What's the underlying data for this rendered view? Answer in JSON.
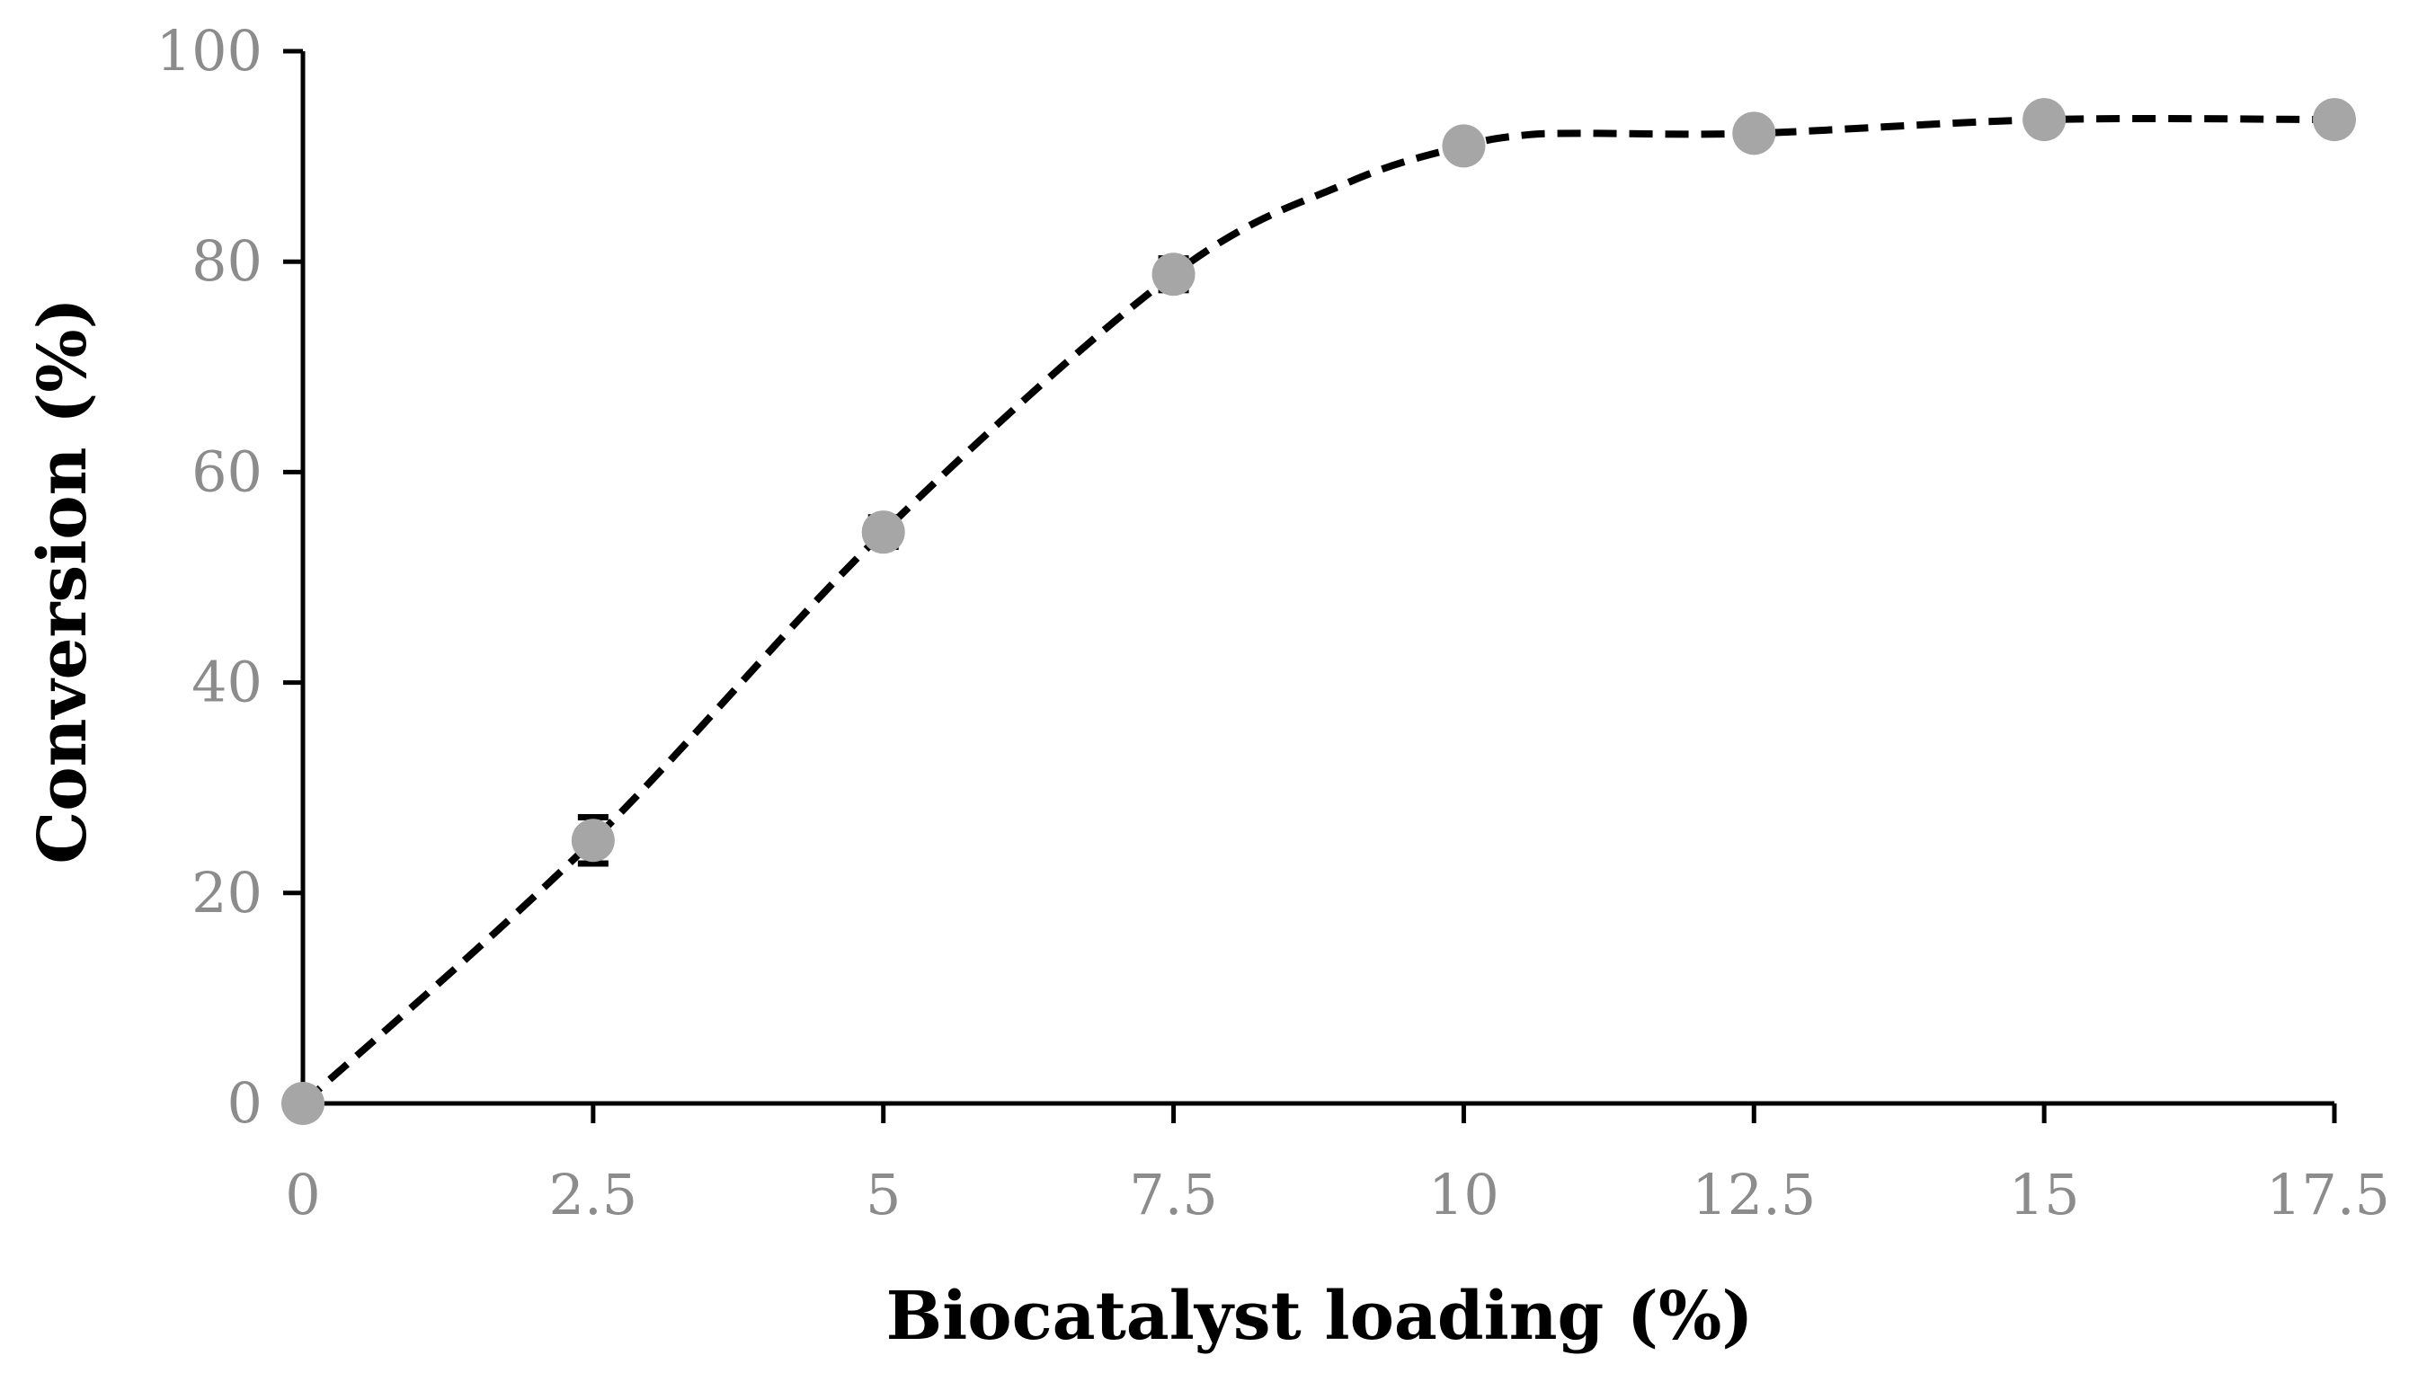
{
  "chart_data": {
    "type": "scatter",
    "title": "",
    "xlabel": "Biocatalyst loading (%)",
    "ylabel": "Conversion (%)",
    "xlim": [
      0,
      17.5
    ],
    "ylim": [
      0,
      100
    ],
    "x_ticks": [
      "0",
      "2.5",
      "5",
      "7.5",
      "10",
      "12.5",
      "15",
      "17.5"
    ],
    "y_ticks": [
      "0",
      "20",
      "40",
      "60",
      "80",
      "100"
    ],
    "grid": false,
    "legend": "none",
    "series": [
      {
        "name": "Conversion",
        "x": [
          0,
          2.5,
          5,
          7.5,
          10,
          12.5,
          15,
          17.5
        ],
        "y": [
          0,
          25,
          54.3,
          78.8,
          91,
          92.2,
          93.5,
          93.5
        ],
        "error": [
          0,
          2.2,
          1.4,
          1.5,
          0,
          0,
          0,
          0
        ],
        "marker_color": "#a6a6a6",
        "error_color": "#000000"
      }
    ],
    "trend_line": {
      "style": "dashed",
      "color": "#000000",
      "x": [
        0,
        2.5,
        5,
        7.5,
        9,
        10,
        10.5,
        11,
        12.5,
        15,
        17.5
      ],
      "y": [
        0,
        25,
        54.3,
        78.8,
        87.5,
        91,
        92,
        92.2,
        92.2,
        93.5,
        93.5
      ]
    }
  }
}
